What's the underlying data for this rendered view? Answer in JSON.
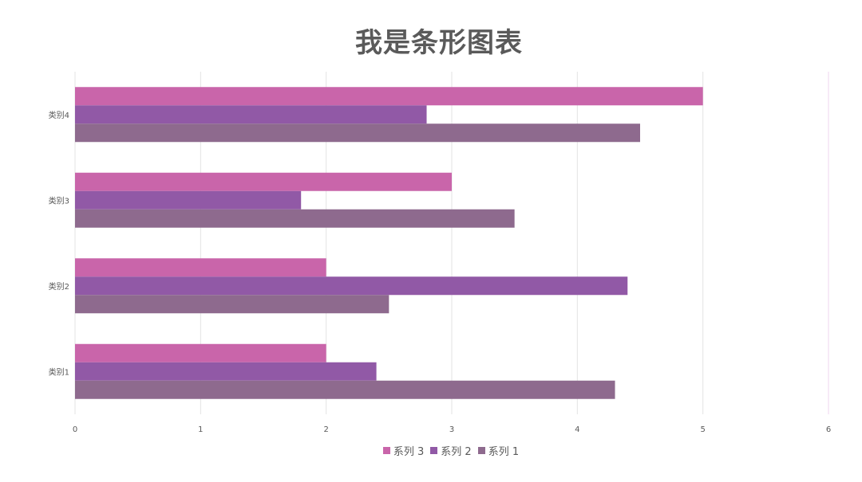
{
  "chart_data": {
    "type": "bar",
    "orientation": "horizontal",
    "title": "我是条形图表",
    "categories": [
      "类别1",
      "类别2",
      "类别3",
      "类别4"
    ],
    "series": [
      {
        "name": "系列 1",
        "values": [
          4.3,
          2.5,
          3.5,
          4.5
        ],
        "color": "#8e6a8e"
      },
      {
        "name": "系列 2",
        "values": [
          2.4,
          4.4,
          1.8,
          2.8
        ],
        "color": "#9159a6"
      },
      {
        "name": "系列 3",
        "values": [
          2.0,
          2.0,
          3.0,
          5.0
        ],
        "color": "#c965aa"
      }
    ],
    "xlim": [
      0,
      6
    ],
    "xticks": [
      "0",
      "1",
      "2",
      "3",
      "4",
      "5",
      "6"
    ],
    "grid": true,
    "legend": "bottom",
    "legend_order": [
      "系列 3",
      "系列 2",
      "系列 1"
    ]
  }
}
